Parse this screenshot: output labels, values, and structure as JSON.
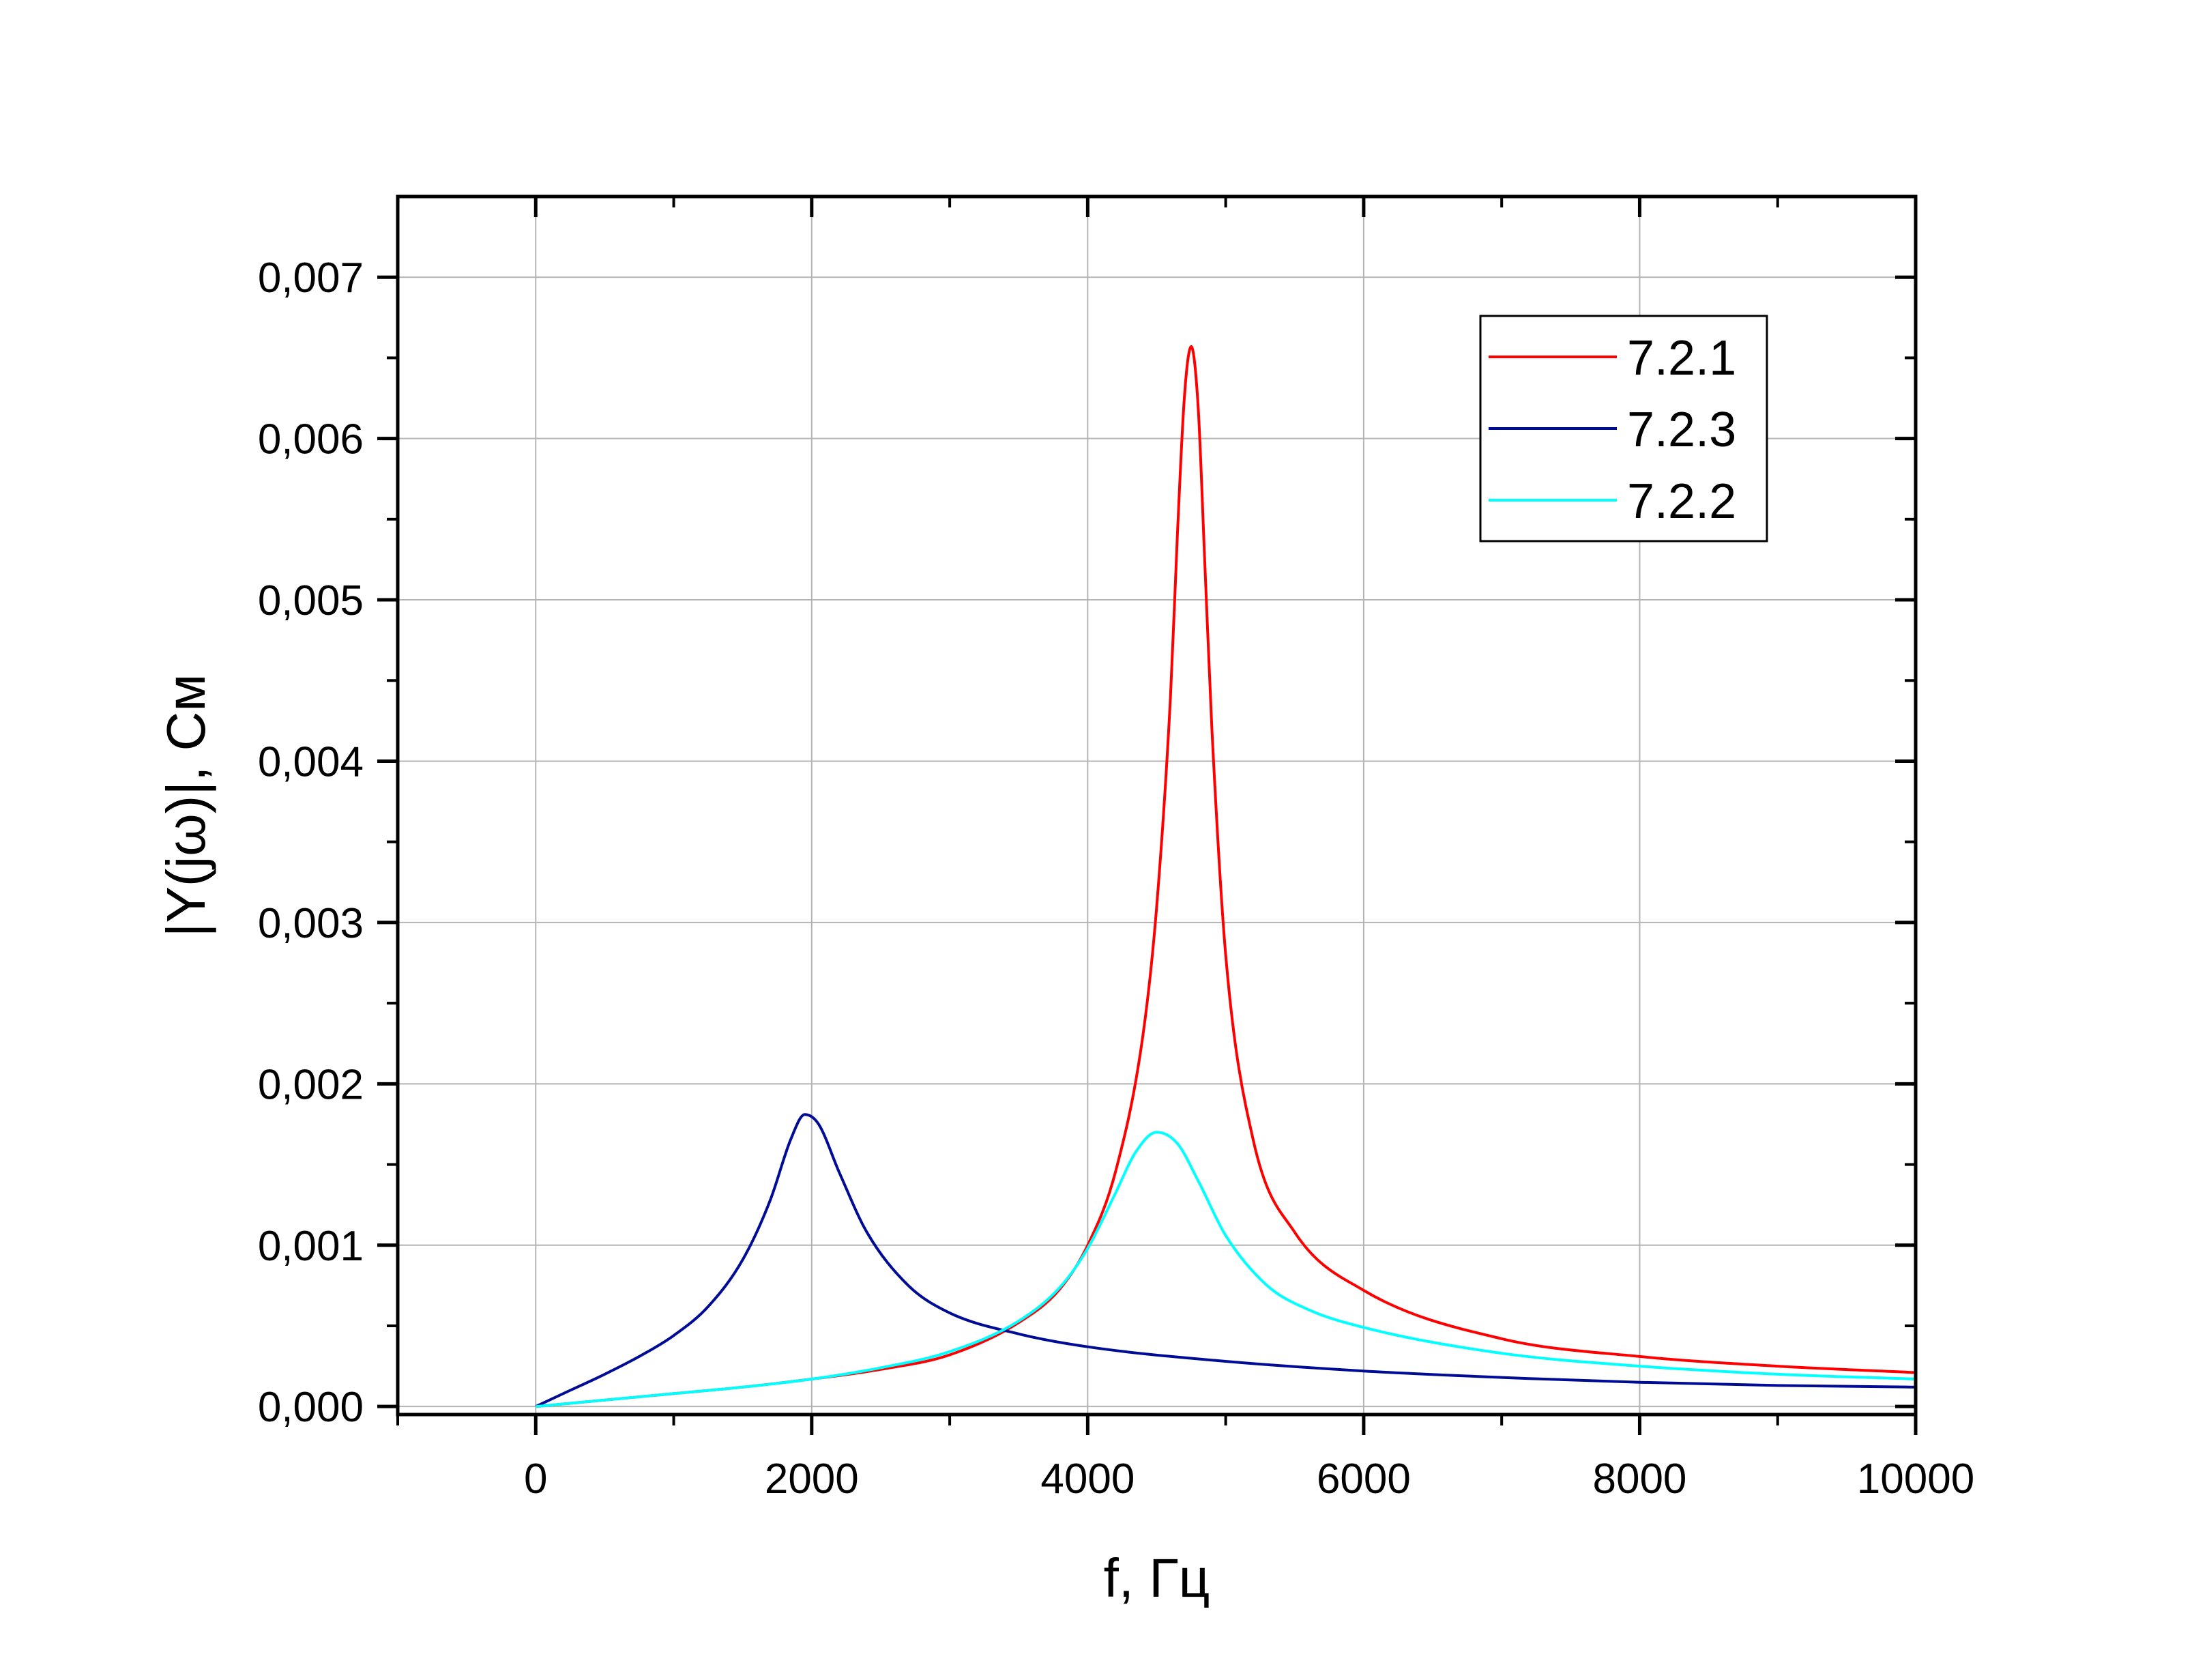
{
  "chart_data": {
    "type": "line",
    "xlabel": "f, Гц",
    "ylabel": "|Y(jω)|, См",
    "xlim": [
      -1000,
      10000
    ],
    "ylim": [
      -5e-05,
      0.0075
    ],
    "x_ticks": [
      0,
      2000,
      4000,
      6000,
      8000,
      10000
    ],
    "x_tick_labels": [
      "0",
      "2000",
      "4000",
      "6000",
      "8000",
      "10000"
    ],
    "y_ticks": [
      0,
      0.001,
      0.002,
      0.003,
      0.004,
      0.005,
      0.006,
      0.007
    ],
    "y_tick_labels": [
      "0,000",
      "0,001",
      "0,002",
      "0,003",
      "0,004",
      "0,005",
      "0,006",
      "0,007"
    ],
    "grid": true,
    "legend_position": "top-right",
    "series": [
      {
        "name": "7.2.1",
        "color": "#ff0000",
        "x": [
          0,
          500,
          1000,
          1500,
          2000,
          2500,
          3000,
          3500,
          3800,
          4000,
          4200,
          4400,
          4500,
          4600,
          4650,
          4700,
          4750,
          4800,
          4850,
          4900,
          5000,
          5200,
          5500,
          6000,
          7000,
          8000,
          9000,
          10000
        ],
        "y": [
          0,
          4e-05,
          8e-05,
          0.00012,
          0.00017,
          0.00023,
          0.00032,
          0.00052,
          0.00073,
          0.001,
          0.00145,
          0.0023,
          0.0031,
          0.0044,
          0.0054,
          0.00625,
          0.00657,
          0.0062,
          0.0052,
          0.0042,
          0.0028,
          0.00165,
          0.00108,
          0.00072,
          0.00042,
          0.00031,
          0.00025,
          0.00021
        ]
      },
      {
        "name": "7.2.3",
        "color": "#000c96",
        "x": [
          0,
          250,
          500,
          750,
          1000,
          1250,
          1500,
          1700,
          1850,
          1950,
          2050,
          2200,
          2400,
          2700,
          3000,
          3500,
          4000,
          5000,
          6000,
          7000,
          8000,
          9000,
          10000
        ],
        "y": [
          0,
          0.0001,
          0.0002,
          0.00031,
          0.00044,
          0.00062,
          0.00091,
          0.00128,
          0.00166,
          0.00181,
          0.00175,
          0.00145,
          0.00108,
          0.00075,
          0.00058,
          0.00045,
          0.00037,
          0.00028,
          0.00022,
          0.00018,
          0.00015,
          0.00013,
          0.00012
        ]
      },
      {
        "name": "7.2.2",
        "color": "#00ffff",
        "x": [
          0,
          500,
          1000,
          1500,
          2000,
          2500,
          3000,
          3500,
          3800,
          4000,
          4200,
          4350,
          4500,
          4650,
          4800,
          5000,
          5300,
          5600,
          6000,
          7000,
          8000,
          9000,
          10000
        ],
        "y": [
          0,
          4e-05,
          8e-05,
          0.00012,
          0.00017,
          0.00024,
          0.00034,
          0.00053,
          0.00074,
          0.00098,
          0.00132,
          0.00158,
          0.0017,
          0.00163,
          0.0014,
          0.00106,
          0.00075,
          0.0006,
          0.00049,
          0.00033,
          0.00025,
          0.0002,
          0.00017
        ]
      }
    ]
  }
}
